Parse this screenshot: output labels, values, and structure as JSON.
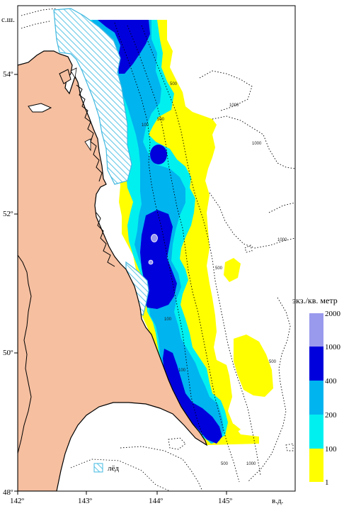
{
  "axes": {
    "lat_ticks": [
      "54º",
      "52º",
      "50º",
      "48º"
    ],
    "lon_ticks": [
      "142º",
      "143º",
      "144º",
      "145º"
    ],
    "lat_suffix": "с.ш.",
    "lon_suffix": "в.д."
  },
  "legend": {
    "title": "экз./кв. метр",
    "bins": [
      {
        "label": "2000",
        "color": "#9999ee"
      },
      {
        "label": "1000",
        "color": "#0000dd"
      },
      {
        "label": "400",
        "color": "#00b4f0"
      },
      {
        "label": "200",
        "color": "#00f0f0"
      },
      {
        "label": "100",
        "color": "#ffff00"
      },
      {
        "label": "1",
        "color": ""
      }
    ],
    "ice_label": "лёд"
  },
  "isobaths": [
    "100",
    "100",
    "100",
    "500",
    "500",
    "500",
    "500",
    "500",
    "1000",
    "1000",
    "1000",
    "1000"
  ],
  "colors": {
    "land": "#f5bfa0",
    "ice": "#66c8e8",
    "density_yellow": "#ffff00",
    "density_cyan": "#00f0f0",
    "density_lightblue": "#00b4f0",
    "density_blue": "#0000dd",
    "density_lavender": "#9999ee"
  }
}
